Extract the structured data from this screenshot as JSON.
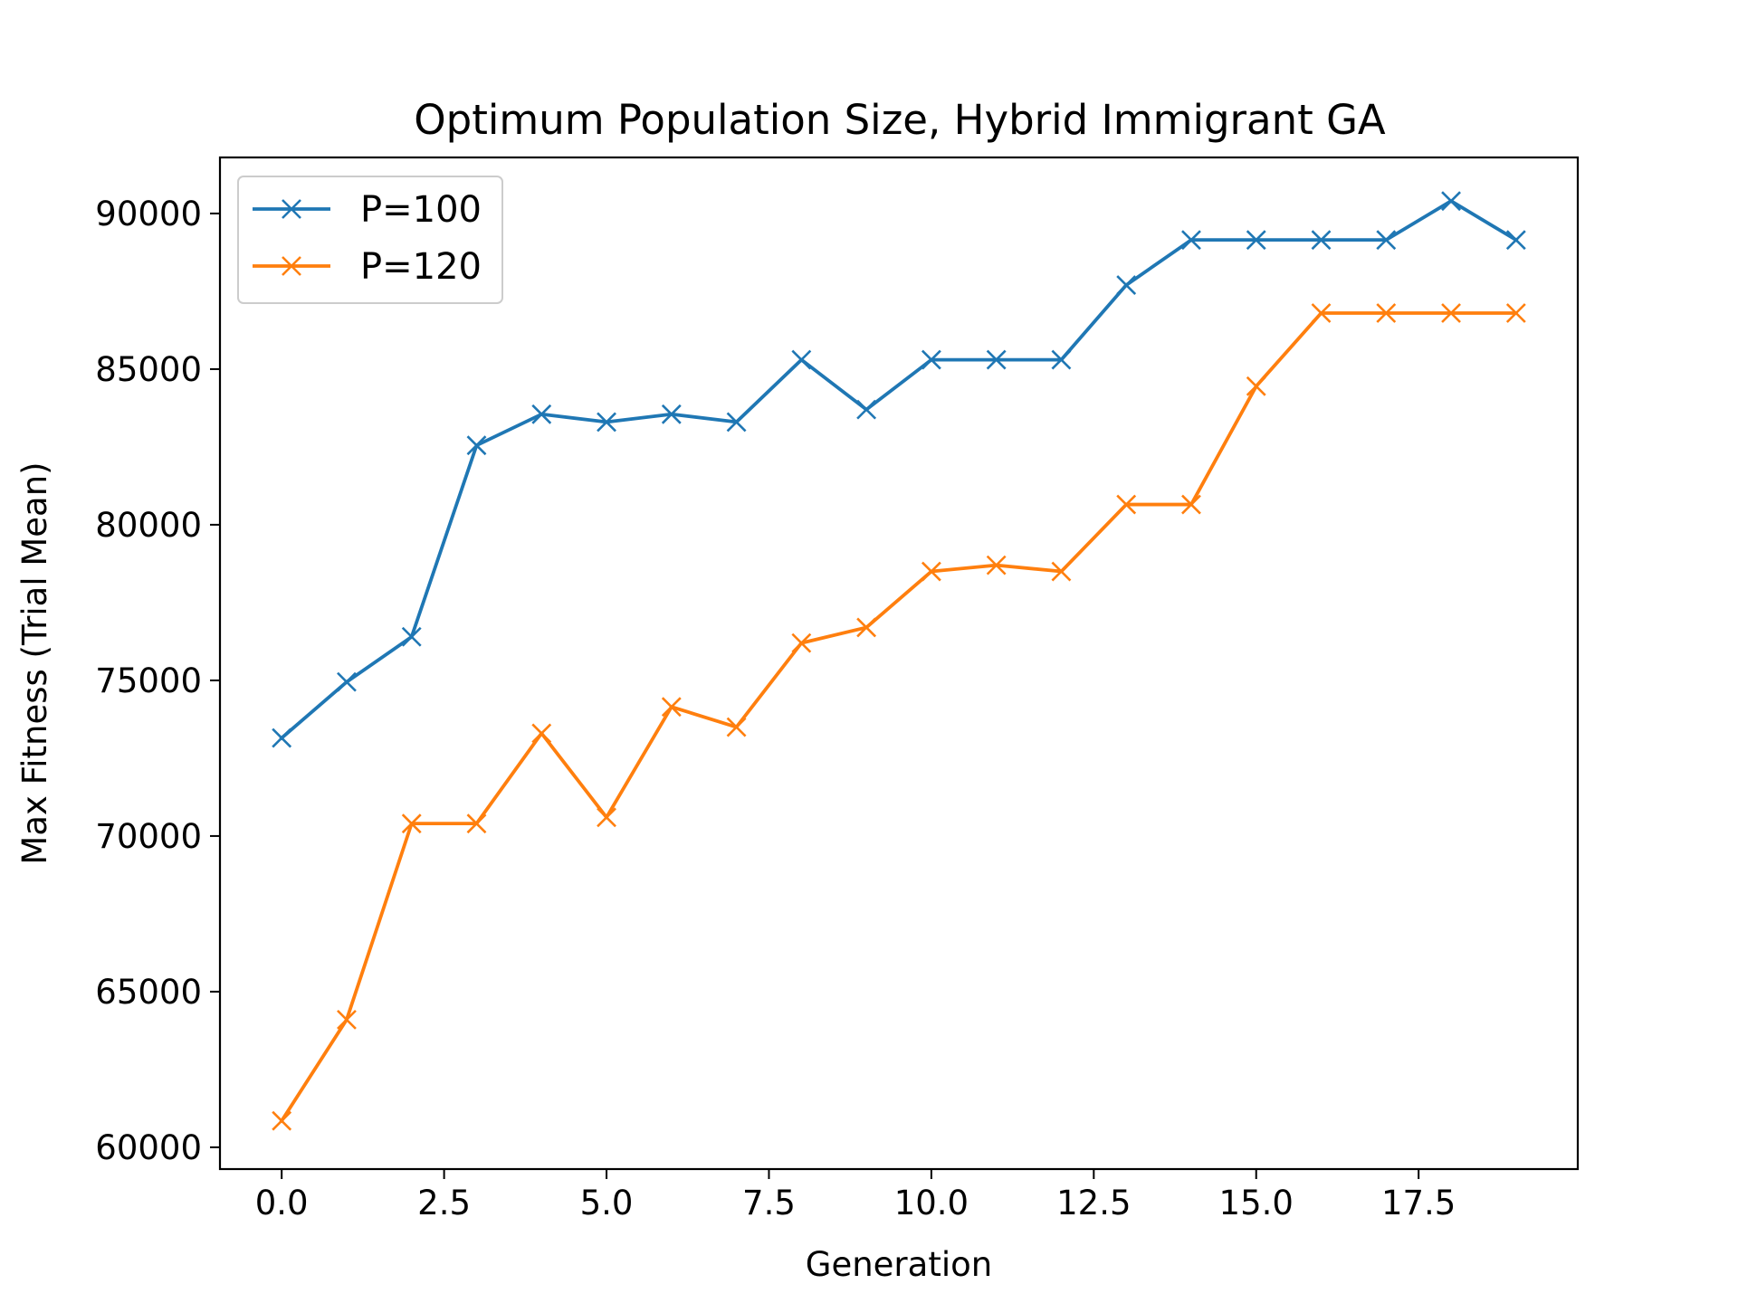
{
  "chart_data": {
    "type": "line",
    "title": "Optimum Population Size, Hybrid Immigrant GA",
    "xlabel": "Generation",
    "ylabel": "Max Fitness (Trial Mean)",
    "xlim": [
      -0.95,
      19.95
    ],
    "ylim": [
      59300,
      91800
    ],
    "xticks": [
      0.0,
      2.5,
      5.0,
      7.5,
      10.0,
      12.5,
      15.0,
      17.5
    ],
    "xtick_labels": [
      "0.0",
      "2.5",
      "5.0",
      "7.5",
      "10.0",
      "12.5",
      "15.0",
      "17.5"
    ],
    "yticks": [
      60000,
      65000,
      70000,
      75000,
      80000,
      85000,
      90000
    ],
    "ytick_labels": [
      "60000",
      "65000",
      "70000",
      "75000",
      "80000",
      "85000",
      "90000"
    ],
    "grid": false,
    "legend_position": "top-left",
    "marker": "x",
    "x": [
      0,
      1,
      2,
      3,
      4,
      5,
      6,
      7,
      8,
      9,
      10,
      11,
      12,
      13,
      14,
      15,
      16,
      17,
      18,
      19
    ],
    "series": [
      {
        "name": "P=100",
        "color": "#1f77b4",
        "values": [
          73150,
          74950,
          76400,
          82550,
          83550,
          83300,
          83550,
          83300,
          85300,
          83700,
          85300,
          85300,
          85300,
          87700,
          89150,
          89150,
          89150,
          89150,
          90400,
          89150
        ]
      },
      {
        "name": "P=120",
        "color": "#ff7f0e",
        "values": [
          60850,
          64100,
          70400,
          70400,
          73300,
          70600,
          74150,
          73500,
          76200,
          76700,
          78500,
          78700,
          78500,
          80650,
          80650,
          84450,
          86800,
          86800,
          86800,
          86800
        ]
      }
    ]
  }
}
